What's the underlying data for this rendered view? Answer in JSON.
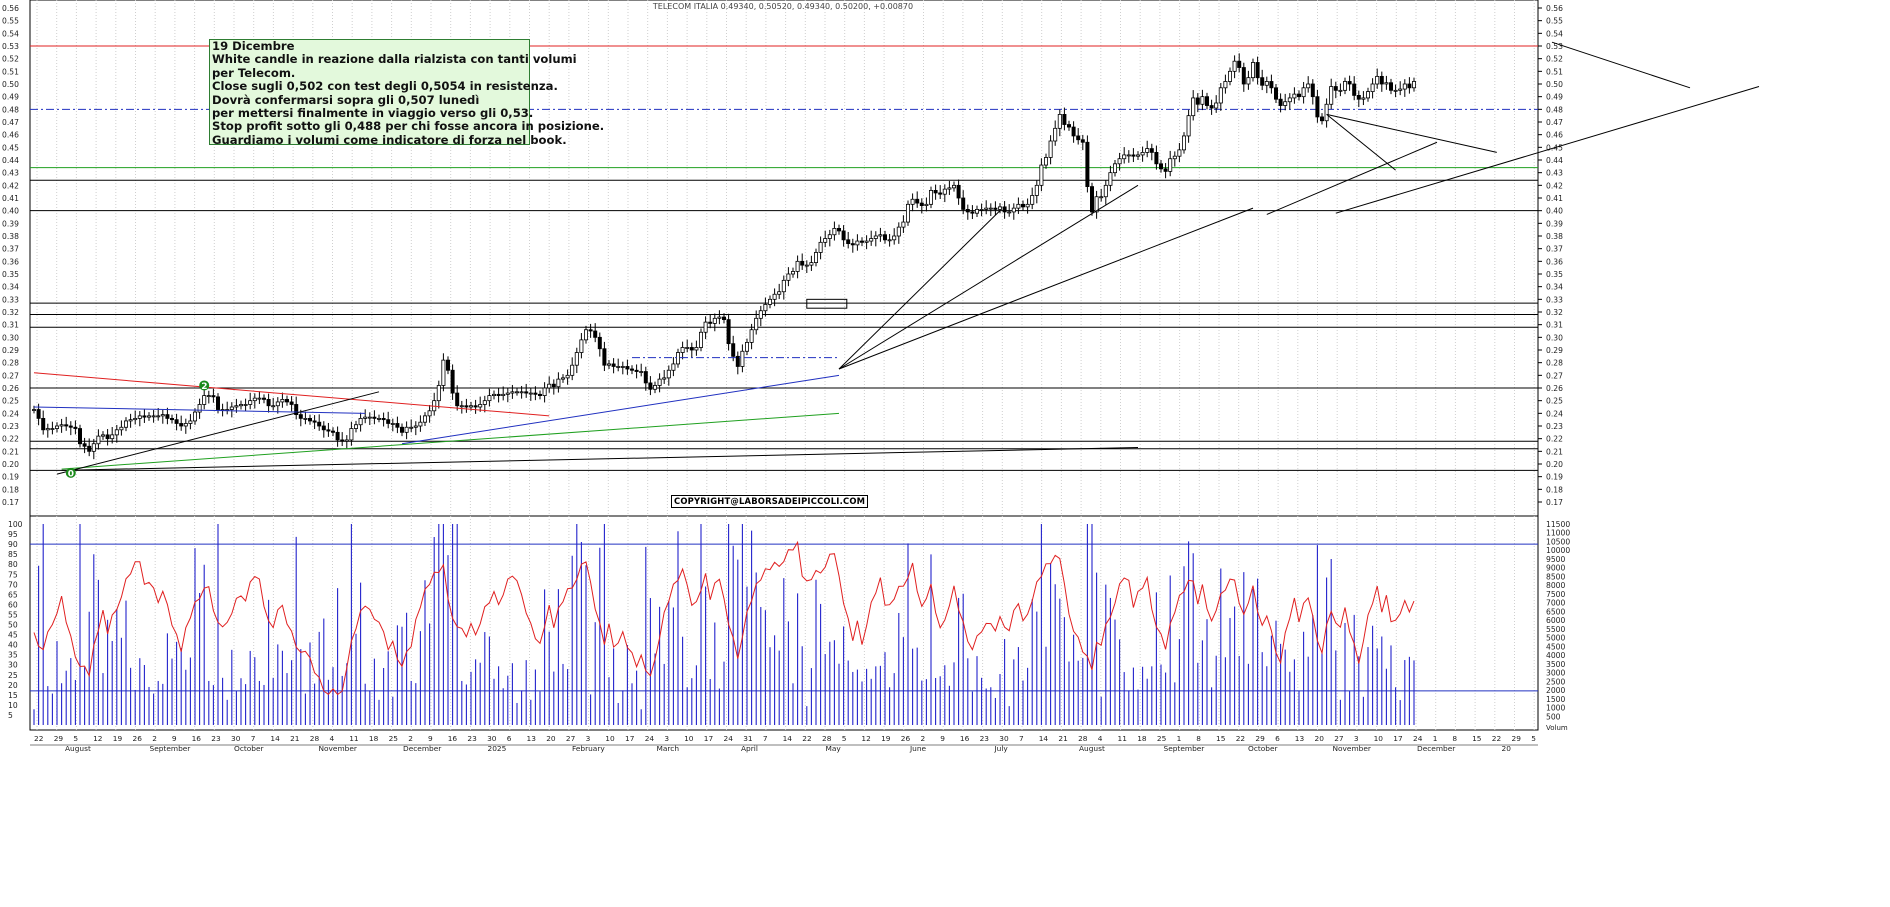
{
  "title": "TELECOM ITALIA 0.49340, 0.50520, 0.49340, 0.50200, +0.00870",
  "note": {
    "lines": [
      "19 Dicembre",
      "White candle in reazione dalla rialzista con tanti volumi",
      "per Telecom.",
      "Close sugli 0,502 con test degli 0,5054 in resistenza.",
      "Dovrà confermarsi sopra gli 0,507 lunedì",
      "per mettersi finalmente in viaggio verso gli 0,53.",
      "Stop profit sotto gli 0,488 per chi fosse ancora in posizione.",
      "Guardiamo i volumi come indicatore di forza nel book."
    ]
  },
  "copyright": "COPYRIGHT@LABORSADEIPICCOLI.COM",
  "markers": [
    {
      "label": "2",
      "x": 37,
      "y": 0.262,
      "color": "#1a8a1a"
    },
    {
      "label": "0",
      "x": 8,
      "y": 0.193,
      "color": "#1a8a1a"
    }
  ],
  "volume_axis_label": "Volum",
  "colors": {
    "price": "#000000",
    "oscillator": "#e02020",
    "volume": "#2222cc",
    "grid": "#cfcfcf"
  },
  "chart_data": {
    "type": "candlestick",
    "price_axis": {
      "min": 0.17,
      "max": 0.56,
      "ticks": [
        0.17,
        0.18,
        0.19,
        0.2,
        0.21,
        0.22,
        0.23,
        0.24,
        0.25,
        0.26,
        0.27,
        0.28,
        0.29,
        0.3,
        0.31,
        0.32,
        0.33,
        0.34,
        0.35,
        0.36,
        0.37,
        0.38,
        0.39,
        0.4,
        0.41,
        0.42,
        0.43,
        0.44,
        0.45,
        0.46,
        0.47,
        0.48,
        0.49,
        0.5,
        0.51,
        0.52,
        0.53,
        0.54,
        0.55,
        0.56
      ]
    },
    "oscillator_axis": {
      "min": 0,
      "max": 105,
      "ticks": [
        5,
        10,
        15,
        20,
        25,
        30,
        35,
        40,
        45,
        50,
        55,
        60,
        65,
        70,
        75,
        80,
        85,
        90,
        95,
        100
      ]
    },
    "volume_axis": {
      "min": 0,
      "max": 11700,
      "ticks": [
        500,
        1000,
        1500,
        2000,
        2500,
        3000,
        3500,
        4000,
        4500,
        5000,
        5500,
        6000,
        6500,
        7000,
        7500,
        8000,
        8500,
        9000,
        9500,
        10000,
        10500,
        11000,
        11500
      ]
    },
    "x_axis": {
      "day_ticks": [
        "22",
        "29",
        "5",
        "12",
        "19",
        "26",
        "2",
        "9",
        "16",
        "23",
        "30",
        "7",
        "14",
        "21",
        "28",
        "4",
        "11",
        "18",
        "25",
        "2",
        "9",
        "16",
        "23",
        "30",
        "6",
        "13",
        "20",
        "27",
        "3",
        "10",
        "17",
        "24",
        "3",
        "10",
        "17",
        "24",
        "31",
        "7",
        "14",
        "22",
        "28",
        "5",
        "12",
        "19",
        "26",
        "2",
        "9",
        "16",
        "23",
        "30",
        "7",
        "14",
        "21",
        "28",
        "4",
        "11",
        "18",
        "25",
        "1",
        "8",
        "15",
        "22",
        "29",
        "6",
        "13",
        "20",
        "27",
        "3",
        "10",
        "17",
        "24",
        "1",
        "8",
        "15",
        "22",
        "29",
        "5"
      ],
      "month_labels": [
        "August",
        "September",
        "October",
        "November",
        "December",
        "2025",
        "February",
        "March",
        "April",
        "May",
        "June",
        "July",
        "August",
        "September",
        "October",
        "November",
        "December",
        "20"
      ]
    },
    "horizontal_levels": [
      {
        "value": 0.53,
        "color": "#e02020",
        "style": "solid"
      },
      {
        "value": 0.48,
        "color": "#2030c0",
        "style": "dashdot"
      },
      {
        "value": 0.434,
        "color": "#20a020",
        "style": "solid"
      },
      {
        "value": 0.424,
        "color": "#000000",
        "style": "solid"
      },
      {
        "value": 0.4,
        "color": "#000000",
        "style": "solid"
      },
      {
        "value": 0.327,
        "color": "#000000",
        "style": "solid"
      },
      {
        "value": 0.318,
        "color": "#000000",
        "style": "solid"
      },
      {
        "value": 0.308,
        "color": "#000000",
        "style": "solid"
      },
      {
        "value": 0.26,
        "color": "#000000",
        "style": "solid"
      },
      {
        "value": 0.218,
        "color": "#000000",
        "style": "solid"
      },
      {
        "value": 0.212,
        "color": "#000000",
        "style": "solid"
      },
      {
        "value": 0.195,
        "color": "#000000",
        "style": "solid"
      }
    ],
    "oscillator_levels": [
      90,
      17
    ],
    "trendlines": [
      {
        "from": [
          0,
          0.272
        ],
        "to": [
          112,
          0.238
        ],
        "color": "#e02020"
      },
      {
        "from": [
          0,
          0.245
        ],
        "to": [
          72,
          0.24
        ],
        "color": "#2030c0"
      },
      {
        "from": [
          80,
          0.216
        ],
        "to": [
          175,
          0.27
        ],
        "color": "#2030c0"
      },
      {
        "from": [
          6,
          0.196
        ],
        "to": [
          175,
          0.24
        ],
        "color": "#20a020"
      },
      {
        "from": [
          5,
          0.192
        ],
        "to": [
          75,
          0.257
        ],
        "color": "#000000"
      },
      {
        "from": [
          6,
          0.195
        ],
        "to": [
          240,
          0.213
        ],
        "color": "#000000"
      },
      {
        "from": [
          175,
          0.275
        ],
        "to": [
          210,
          0.4
        ],
        "color": "#000000"
      },
      {
        "from": [
          175,
          0.275
        ],
        "to": [
          240,
          0.42
        ],
        "color": "#000000"
      },
      {
        "from": [
          175,
          0.275
        ],
        "to": [
          265,
          0.402
        ],
        "color": "#000000"
      },
      {
        "from": [
          268,
          0.397
        ],
        "to": [
          305,
          0.454
        ],
        "color": "#000000"
      },
      {
        "from": [
          281,
          0.476
        ],
        "to": [
          318,
          0.446
        ],
        "color": "#000000"
      },
      {
        "from": [
          281,
          0.476
        ],
        "to": [
          296,
          0.432
        ],
        "color": "#000000"
      },
      {
        "from": [
          283,
          0.398
        ],
        "to": [
          375,
          0.498
        ],
        "color": "#000000"
      },
      {
        "from": [
          330,
          0.533
        ],
        "to": [
          360,
          0.497
        ],
        "color": "#000000"
      },
      {
        "from": [
          130,
          0.284
        ],
        "to": [
          175,
          0.284
        ],
        "color": "#2030c0",
        "style": "dashdot"
      }
    ],
    "series_note": "Daily OHLC candles (Jul 2024 – Dec 2025), an oscillator line (red, left 0-100 scale) and daily volume bars (blue, right scale). Values are read off the chart axes and approximated; generated from closes below.",
    "closes": [
      0.243,
      0.236,
      0.227,
      0.228,
      0.228,
      0.23,
      0.231,
      0.23,
      0.229,
      0.228,
      0.216,
      0.214,
      0.21,
      0.216,
      0.222,
      0.223,
      0.22,
      0.223,
      0.227,
      0.229,
      0.234,
      0.235,
      0.236,
      0.238,
      0.237,
      0.238,
      0.238,
      0.238,
      0.239,
      0.236,
      0.235,
      0.232,
      0.23,
      0.232,
      0.234,
      0.241,
      0.247,
      0.254,
      0.254,
      0.253,
      0.243,
      0.243,
      0.243,
      0.245,
      0.246,
      0.247,
      0.247,
      0.25,
      0.252,
      0.252,
      0.251,
      0.246,
      0.246,
      0.249,
      0.251,
      0.249,
      0.247,
      0.239,
      0.236,
      0.236,
      0.234,
      0.233,
      0.23,
      0.227,
      0.226,
      0.225,
      0.219,
      0.218,
      0.219,
      0.228,
      0.231,
      0.236,
      0.237,
      0.237,
      0.236,
      0.236,
      0.235,
      0.232,
      0.232,
      0.229,
      0.225,
      0.229,
      0.229,
      0.23,
      0.233,
      0.238,
      0.242,
      0.25,
      0.262,
      0.282,
      0.274,
      0.256,
      0.246,
      0.246,
      0.245,
      0.246,
      0.245,
      0.247,
      0.25,
      0.254,
      0.255,
      0.254,
      0.255,
      0.256,
      0.257,
      0.257,
      0.257,
      0.256,
      0.256,
      0.255,
      0.254,
      0.26,
      0.263,
      0.261,
      0.267,
      0.268,
      0.27,
      0.278,
      0.288,
      0.298,
      0.306,
      0.305,
      0.3,
      0.291,
      0.278,
      0.279,
      0.277,
      0.277,
      0.277,
      0.275,
      0.274,
      0.273,
      0.273,
      0.264,
      0.259,
      0.262,
      0.267,
      0.268,
      0.274,
      0.279,
      0.288,
      0.292,
      0.292,
      0.29,
      0.292,
      0.304,
      0.312,
      0.311,
      0.315,
      0.316,
      0.314,
      0.295,
      0.285,
      0.277,
      0.289,
      0.296,
      0.306,
      0.315,
      0.321,
      0.326,
      0.33,
      0.334,
      0.336,
      0.345,
      0.35,
      0.352,
      0.36,
      0.357,
      0.357,
      0.359,
      0.367,
      0.375,
      0.378,
      0.381,
      0.386,
      0.384,
      0.377,
      0.374,
      0.373,
      0.376,
      0.375,
      0.376,
      0.378,
      0.38,
      0.381,
      0.377,
      0.377,
      0.38,
      0.387,
      0.391,
      0.405,
      0.409,
      0.406,
      0.404,
      0.405,
      0.416,
      0.414,
      0.413,
      0.417,
      0.418,
      0.42,
      0.41,
      0.401,
      0.399,
      0.398,
      0.401,
      0.401,
      0.402,
      0.402,
      0.401,
      0.403,
      0.399,
      0.399,
      0.402,
      0.405,
      0.403,
      0.405,
      0.412,
      0.42,
      0.436,
      0.442,
      0.455,
      0.465,
      0.476,
      0.468,
      0.466,
      0.459,
      0.456,
      0.454,
      0.419,
      0.399,
      0.411,
      0.411,
      0.42,
      0.43,
      0.437,
      0.441,
      0.444,
      0.444,
      0.443,
      0.444,
      0.446,
      0.449,
      0.446,
      0.437,
      0.433,
      0.431,
      0.441,
      0.443,
      0.448,
      0.459,
      0.475,
      0.489,
      0.484,
      0.49,
      0.483,
      0.481,
      0.485,
      0.497,
      0.502,
      0.51,
      0.518,
      0.513,
      0.5,
      0.505,
      0.517,
      0.505,
      0.499,
      0.502,
      0.497,
      0.488,
      0.483,
      0.486,
      0.489,
      0.492,
      0.49,
      0.497,
      0.5,
      0.49,
      0.474,
      0.471,
      0.484,
      0.498,
      0.495,
      0.495,
      0.502,
      0.5,
      0.491,
      0.488,
      0.489,
      0.494,
      0.5,
      0.506,
      0.5,
      0.501,
      0.495,
      0.495,
      0.496,
      0.5,
      0.497,
      0.502
    ]
  }
}
